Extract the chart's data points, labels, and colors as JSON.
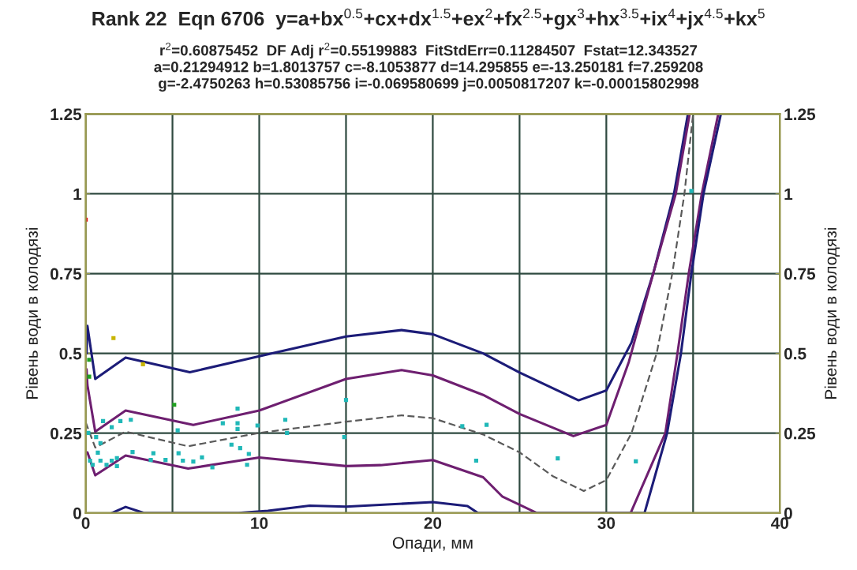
{
  "chart_data": {
    "type": "line",
    "title": "Rank 22  Eqn 6706  y=a+bx$^{0.5}$+cx+dx$^{1.5}$+ex$^{2}$+fx$^{2.5}$+gx$^{3}$+hx$^{3.5}$+ix$^{4}$+jx$^{4.5}$+kx$^{5}$",
    "subtitle": "r$^{2}$=0.60875452  DF Adj r$^{2}$=0.55199883  FitStdErr=0.11284507  Fstat=12.343527\na=0.21294912 b=1.8013757 c=-8.1053877 d=14.295855 e=-13.250181 f=7.259208\ng=-2.4750263 h=0.53085756 i=-0.069580699 j=0.0050817207 k=-0.00015802998",
    "xlabel": "Опади, мм",
    "ylabel": "Рівень води в колодязі",
    "y2label": "Рівень води в колодязі",
    "xlim": [
      0,
      40
    ],
    "xticks": [
      0,
      {
        "value": 5,
        "label": null
      },
      10,
      {
        "value": 15,
        "label": null
      },
      20,
      {
        "value": 25,
        "label": null
      },
      30,
      {
        "value": 35,
        "label": null
      },
      40
    ],
    "ylim": [
      0,
      1.25
    ],
    "yticks": [
      0,
      0.25,
      0.5,
      0.75,
      1,
      1.25
    ],
    "y2lim": [
      0,
      1.25
    ],
    "y2ticks": [
      0,
      0.25,
      0.5,
      0.75,
      1,
      1.25
    ],
    "grid": true,
    "legend": false,
    "series": [
      {
        "line_style": "solid",
        "color": "#1c1c78",
        "x": [
          0.05,
          0.1,
          0.55,
          2.3,
          6.0,
          10,
          15,
          18.2,
          20,
          22.9,
          25,
          28.4,
          30,
          31.45,
          32.7,
          33.9,
          34.7
        ],
        "values": [
          0.5,
          0.586,
          0.42,
          0.487,
          0.441,
          0.491,
          0.553,
          0.573,
          0.56,
          0.5,
          0.44,
          0.353,
          0.384,
          0.534,
          0.75,
          1.0,
          1.25
        ]
      },
      {
        "line_style": "solid",
        "color": "#6e1f70",
        "x": [
          0.05,
          0.1,
          0.55,
          2.3,
          6.2,
          10,
          15,
          18.2,
          20,
          22.9,
          25,
          28.1,
          30,
          31.3,
          32.7,
          34.0,
          34.8
        ],
        "values": [
          0.45,
          0.4,
          0.255,
          0.321,
          0.276,
          0.321,
          0.42,
          0.448,
          0.431,
          0.37,
          0.31,
          0.241,
          0.276,
          0.474,
          0.75,
          1.0,
          1.25
        ]
      },
      {
        "line_style": "dashed",
        "color": "#5a5a5a",
        "x": [
          0,
          0.55,
          2.3,
          5.9,
          10,
          15,
          18.2,
          20,
          22.9,
          25,
          26.9,
          28.7,
          30,
          31.45,
          32.9,
          33.8,
          34.5,
          35.0
        ],
        "values": [
          0.284,
          0.205,
          0.255,
          0.209,
          0.251,
          0.286,
          0.306,
          0.297,
          0.246,
          0.19,
          0.116,
          0.069,
          0.103,
          0.25,
          0.5,
          0.75,
          1.0,
          1.25
        ]
      },
      {
        "line_style": "solid",
        "color": "#6e1f70",
        "x": [
          0.1,
          0.55,
          2.3,
          5.9,
          10,
          15,
          17,
          20,
          22.9,
          24,
          26.0,
          31.4,
          33.4,
          34.1,
          34.75,
          35.5,
          36.45
        ],
        "values": [
          0.19,
          0.118,
          0.18,
          0.139,
          0.174,
          0.147,
          0.15,
          0.166,
          0.112,
          0.052,
          0,
          0,
          0.25,
          0.5,
          0.75,
          1.0,
          1.25
        ]
      },
      {
        "line_style": "solid",
        "color": "#1c1c78",
        "x": [
          1.5,
          2.3,
          3.35,
          8.8,
          10.5,
          12.9,
          15,
          20,
          22,
          22.6,
          32.2,
          33.5,
          34.3,
          34.9,
          35.6,
          36.6
        ],
        "values": [
          0,
          0.019,
          0,
          0,
          0.007,
          0.023,
          0.02,
          0.034,
          0.022,
          0,
          0,
          0.25,
          0.5,
          0.75,
          1.0,
          1.25
        ]
      },
      {
        "type": "scatter",
        "marker": "square",
        "x": [
          0.0,
          1.6,
          3.3,
          0.2,
          0.2,
          5.1,
          8.75,
          15.0,
          1.0,
          1.5,
          2.0,
          2.6,
          5.3,
          7.9,
          8.75,
          8.75,
          9.9,
          11.5,
          11.6,
          14.9,
          0.15,
          0.6,
          0.85,
          0.25,
          0.7,
          0.85,
          0.4,
          1.2,
          1.5,
          1.8,
          1.8,
          2.7,
          3.9,
          3.75,
          4.6,
          5.35,
          5.6,
          6.2,
          6.7,
          7.3,
          8.4,
          8.9,
          9.4,
          9.3,
          21.7,
          23.1,
          22.5,
          27.2,
          31.7,
          34.9
        ],
        "values": [
          0.919,
          0.548,
          0.466,
          0.48,
          0.427,
          0.339,
          0.327,
          0.354,
          0.288,
          0.269,
          0.288,
          0.292,
          0.259,
          0.281,
          0.281,
          0.263,
          0.274,
          0.292,
          0.251,
          0.238,
          0.251,
          0.238,
          0.219,
          0.164,
          0.189,
          0.164,
          0.151,
          0.151,
          0.164,
          0.172,
          0.147,
          0.191,
          0.187,
          0.166,
          0.166,
          0.187,
          0.164,
          0.161,
          0.174,
          0.143,
          0.214,
          0.203,
          0.185,
          0.151,
          0.272,
          0.276,
          0.164,
          0.171,
          0.162,
          1.009
        ],
        "colors": [
          "#e01010",
          "#c8b400",
          "#c8b400",
          "#20a020",
          "#20a020",
          "#20a020",
          "#20b8b8",
          "#20b8b8",
          "#20b8b8",
          "#20b8b8",
          "#20b8b8",
          "#20b8b8",
          "#20b8b8",
          "#20b8b8",
          "#20b8b8",
          "#20b8b8",
          "#20b8b8",
          "#20b8b8",
          "#20b8b8",
          "#20b8b8",
          "#20b8b8",
          "#20b8b8",
          "#20b8b8",
          "#20b8b8",
          "#20b8b8",
          "#20b8b8",
          "#20b8b8",
          "#20b8b8",
          "#20b8b8",
          "#20b8b8",
          "#20b8b8",
          "#20b8b8",
          "#20b8b8",
          "#20b8b8",
          "#20b8b8",
          "#20b8b8",
          "#20b8b8",
          "#20b8b8",
          "#20b8b8",
          "#20b8b8",
          "#20b8b8",
          "#20b8b8",
          "#20b8b8",
          "#20b8b8",
          "#20b8b8",
          "#20b8b8",
          "#20b8b8",
          "#20b8b8",
          "#20b8b8",
          "#20b8b8"
        ]
      }
    ]
  }
}
